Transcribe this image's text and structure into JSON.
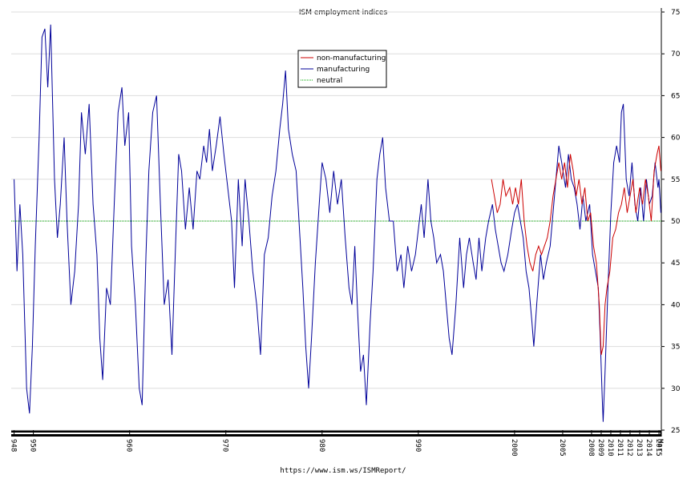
{
  "chart_data": {
    "type": "line",
    "title": "ISM employment indices",
    "x_label": "https://www.ism.ws/ISMReport/",
    "xlim": [
      1947.7,
      2015.25
    ],
    "ylim": [
      25,
      75
    ],
    "yticks": [
      25,
      30,
      35,
      40,
      45,
      50,
      55,
      60,
      65,
      70,
      75
    ],
    "xticks": [
      {
        "value": 1948,
        "label": "948"
      },
      {
        "value": 1950,
        "label": "950"
      },
      {
        "value": 1960,
        "label": "960"
      },
      {
        "value": 1970,
        "label": "970"
      },
      {
        "value": 1980,
        "label": "980"
      },
      {
        "value": 1990,
        "label": "990"
      },
      2000,
      2005,
      2008,
      2009,
      2010,
      2011,
      2012,
      2013,
      2014,
      2015,
      {
        "value": 2015.17,
        "label": "Mar"
      }
    ],
    "grid": true,
    "legend": "top-center",
    "series": [
      {
        "name": "non-manufacturing",
        "color": "#cc0000",
        "style": "solid",
        "x": [
          1997.6,
          1997.9,
          1998.2,
          1998.5,
          1998.8,
          1999.1,
          1999.5,
          1999.8,
          2000.1,
          2000.4,
          2000.7,
          2001.0,
          2001.3,
          2001.6,
          2001.9,
          2002.2,
          2002.5,
          2002.8,
          2003.1,
          2003.4,
          2003.7,
          2004.0,
          2004.3,
          2004.6,
          2004.9,
          2005.2,
          2005.5,
          2005.8,
          2006.1,
          2006.4,
          2006.7,
          2007.0,
          2007.3,
          2007.6,
          2007.9,
          2008.2,
          2008.5,
          2008.8,
          2009.0,
          2009.2,
          2009.4,
          2009.6,
          2009.9,
          2010.2,
          2010.5,
          2010.8,
          2011.1,
          2011.4,
          2011.7,
          2012.0,
          2012.3,
          2012.6,
          2013.0,
          2013.3,
          2013.6,
          2013.9,
          2014.2,
          2014.5,
          2014.8,
          2015.0,
          2015.2
        ],
        "values": [
          55,
          53,
          51,
          52,
          55,
          53,
          54,
          52,
          54,
          52,
          55,
          50,
          47,
          45,
          44,
          46,
          47,
          46,
          47,
          48,
          50,
          53,
          55,
          57,
          55,
          57,
          54,
          58,
          56,
          53,
          55,
          52,
          54,
          50,
          51,
          47,
          45,
          40,
          34,
          35,
          40,
          42,
          44,
          48,
          49,
          51,
          52,
          54,
          51,
          53,
          55,
          51,
          54,
          52,
          55,
          53,
          50,
          56,
          58,
          59,
          56
        ]
      },
      {
        "name": "manufacturing",
        "color": "#000099",
        "style": "solid",
        "x": [
          1948.0,
          1948.3,
          1948.6,
          1948.9,
          1949.3,
          1949.6,
          1949.9,
          1950.2,
          1950.6,
          1950.9,
          1951.2,
          1951.5,
          1951.8,
          1952.2,
          1952.5,
          1952.8,
          1953.2,
          1953.5,
          1953.9,
          1954.3,
          1954.7,
          1955.0,
          1955.4,
          1955.8,
          1956.2,
          1956.6,
          1956.9,
          1957.2,
          1957.6,
          1958.0,
          1958.4,
          1958.8,
          1959.2,
          1959.5,
          1959.9,
          1960.2,
          1960.6,
          1961.0,
          1961.3,
          1961.7,
          1962.0,
          1962.4,
          1962.8,
          1963.2,
          1963.6,
          1964.0,
          1964.4,
          1964.8,
          1965.1,
          1965.4,
          1965.8,
          1966.2,
          1966.6,
          1967.0,
          1967.3,
          1967.7,
          1968.0,
          1968.3,
          1968.6,
          1969.0,
          1969.4,
          1969.8,
          1970.2,
          1970.6,
          1970.9,
          1971.3,
          1971.7,
          1972.0,
          1972.4,
          1972.8,
          1973.2,
          1973.6,
          1974.0,
          1974.4,
          1974.8,
          1975.2,
          1975.6,
          1975.9,
          1976.2,
          1976.5,
          1976.9,
          1977.3,
          1977.7,
          1978.0,
          1978.3,
          1978.6,
          1978.9,
          1979.3,
          1979.7,
          1980.0,
          1980.4,
          1980.8,
          1981.2,
          1981.6,
          1982.0,
          1982.4,
          1982.8,
          1983.1,
          1983.4,
          1983.7,
          1984.0,
          1984.3,
          1984.6,
          1985.0,
          1985.3,
          1985.7,
          1986.0,
          1986.3,
          1986.6,
          1987.0,
          1987.4,
          1987.8,
          1988.2,
          1988.5,
          1988.9,
          1989.3,
          1989.7,
          1990.0,
          1990.3,
          1990.6,
          1991.0,
          1991.3,
          1991.6,
          1991.9,
          1992.3,
          1992.6,
          1992.9,
          1993.2,
          1993.5,
          1993.9,
          1994.3,
          1994.7,
          1995.0,
          1995.3,
          1995.7,
          1996.0,
          1996.3,
          1996.6,
          1997.0,
          1997.3,
          1997.7,
          1998.0,
          1998.3,
          1998.6,
          1998.9,
          1999.3,
          1999.7,
          2000.0,
          2000.3,
          2000.6,
          2000.9,
          2001.2,
          2001.5,
          2001.8,
          2002.0,
          2002.3,
          2002.7,
          2003.0,
          2003.3,
          2003.7,
          2004.0,
          2004.3,
          2004.6,
          2004.9,
          2005.3,
          2005.6,
          2005.9,
          2006.2,
          2006.5,
          2006.8,
          2007.1,
          2007.4,
          2007.8,
          2008.1,
          2008.4,
          2008.7,
          2008.9,
          2009.1,
          2009.2,
          2009.4,
          2009.7,
          2010.0,
          2010.3,
          2010.6,
          2010.9,
          2011.1,
          2011.3,
          2011.6,
          2011.9,
          2012.2,
          2012.5,
          2012.8,
          2013.1,
          2013.4,
          2013.7,
          2014.0,
          2014.3,
          2014.6,
          2014.9,
          2015.0,
          2015.2
        ],
        "values": [
          55,
          44,
          52,
          46,
          30,
          27,
          35,
          47,
          60,
          72,
          73,
          66,
          73.5,
          55,
          48,
          52,
          60,
          50,
          40,
          44,
          52,
          63,
          58,
          64,
          52,
          46,
          36,
          31,
          42,
          40,
          52,
          63,
          66,
          59,
          63,
          47,
          40,
          30,
          28,
          46,
          56,
          63,
          65,
          52,
          40,
          43,
          34,
          48,
          58,
          56,
          49,
          54,
          49,
          56,
          55,
          59,
          57,
          61,
          56,
          59,
          62.5,
          58,
          54,
          50,
          42,
          55,
          47,
          55,
          50,
          44,
          40,
          34,
          46,
          48,
          53,
          56,
          61,
          64,
          68,
          61,
          58,
          56,
          48,
          42,
          35,
          30,
          36,
          45,
          52,
          57,
          55,
          51,
          56,
          52,
          55,
          48,
          42,
          40,
          47,
          39,
          32,
          34,
          28,
          38,
          44,
          55,
          58,
          60,
          54,
          50,
          50,
          44,
          46,
          42,
          47,
          44,
          46,
          49,
          52,
          48,
          55,
          50,
          48,
          45,
          46,
          44,
          40,
          36,
          34,
          40,
          48,
          42,
          46,
          48,
          45,
          43,
          48,
          44,
          48,
          50,
          52,
          49,
          47,
          45,
          44,
          46,
          49,
          51,
          52,
          50,
          48,
          44,
          42,
          38,
          35,
          40,
          46,
          43,
          45,
          47,
          51,
          55,
          59,
          57,
          54,
          58,
          55,
          54,
          52,
          49,
          53,
          50,
          52,
          46,
          44,
          42,
          36,
          29,
          26,
          32,
          42,
          51,
          57,
          59,
          57,
          63,
          64,
          55,
          53,
          57,
          52,
          50,
          54,
          50,
          55,
          52,
          53,
          57,
          54,
          55,
          51
        ]
      },
      {
        "name": "neutral",
        "color": "#00aa00",
        "style": "dotted",
        "x": [
          1947.7,
          2015.25
        ],
        "values": [
          50,
          50
        ]
      }
    ]
  }
}
